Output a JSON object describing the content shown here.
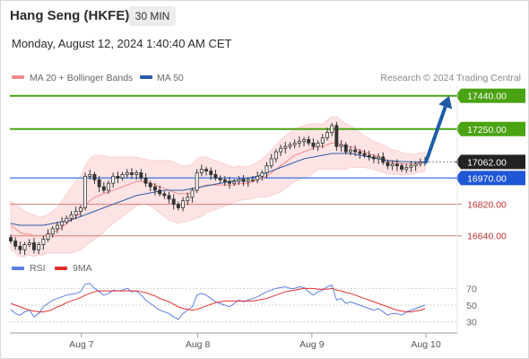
{
  "header": {
    "title": "Hang Seng (HKFE)",
    "timeframe": "30 MIN",
    "datetime": "Monday, August 12, 2024 1:40:40 AM CET"
  },
  "legend": {
    "items": [
      {
        "label": "MA 20 + Bollinger Bands",
        "color": "#f28b8b"
      },
      {
        "label": "MA 50",
        "color": "#2a5ca8"
      }
    ],
    "credit": "Research © 2024 Trading Central"
  },
  "colors": {
    "resistance": "#4aa312",
    "pivot": "#4e7fe8",
    "support": "#e07b7b",
    "last_price": "#222222",
    "arrow": "#1f5ca8",
    "band_fill": "#fde3e3",
    "up_candle": "#ffffff",
    "down_candle": "#333333",
    "rsi": "#5b7fe0",
    "rsi_ma": "#e53030"
  },
  "chart_data": [
    {
      "type": "candlestick",
      "y_range": [
        16500,
        17500
      ],
      "x_range": [
        0,
        100
      ],
      "x_tick_labels": [
        {
          "label": "Aug 7",
          "x": 16
        },
        {
          "label": "Aug 8",
          "x": 42
        },
        {
          "label": "Aug 9",
          "x": 67.5
        },
        {
          "label": "Aug 10",
          "x": 93
        }
      ],
      "level_lines": [
        {
          "label": "17440.00",
          "value": 17440,
          "kind": "resistance"
        },
        {
          "label": "17250.00",
          "value": 17250,
          "kind": "resistance"
        },
        {
          "label": "17062.00",
          "value": 17062,
          "kind": "last_price"
        },
        {
          "label": "16970.00",
          "value": 16970,
          "kind": "pivot"
        },
        {
          "label": "16820.00",
          "value": 16820,
          "kind": "support"
        },
        {
          "label": "16640.00",
          "value": 16640,
          "kind": "support"
        }
      ],
      "arrow": {
        "from": [
          93,
          17062
        ],
        "to": [
          98.2,
          17440
        ]
      },
      "close": [
        16610,
        16580,
        16560,
        16590,
        16600,
        16560,
        16590,
        16620,
        16650,
        16680,
        16700,
        16720,
        16740,
        16760,
        16780,
        16800,
        16980,
        16990,
        16960,
        16920,
        16900,
        16940,
        16980,
        16970,
        16990,
        17000,
        16990,
        17000,
        16970,
        16940,
        16920,
        16900,
        16880,
        16870,
        16850,
        16820,
        16800,
        16840,
        16860,
        16900,
        17000,
        17020,
        17010,
        16990,
        16970,
        16960,
        16950,
        16940,
        16950,
        16960,
        16950,
        16960,
        16960,
        16980,
        17000,
        17040,
        17080,
        17120,
        17140,
        17150,
        17160,
        17170,
        17180,
        17190,
        17170,
        17150,
        17170,
        17200,
        17230,
        17270,
        17150,
        17160,
        17120,
        17130,
        17120,
        17110,
        17100,
        17090,
        17080,
        17090,
        17060,
        17040,
        17050,
        17040,
        17020,
        17030,
        17040,
        17050,
        17060,
        17062
      ],
      "ma20": [
        16700,
        16680,
        16660,
        16650,
        16650,
        16640,
        16640,
        16640,
        16650,
        16660,
        16670,
        16690,
        16710,
        16730,
        16750,
        16770,
        16810,
        16840,
        16860,
        16870,
        16880,
        16890,
        16900,
        16910,
        16920,
        16930,
        16940,
        16950,
        16950,
        16950,
        16940,
        16930,
        16920,
        16910,
        16900,
        16890,
        16880,
        16880,
        16880,
        16890,
        16910,
        16920,
        16930,
        16930,
        16930,
        16930,
        16930,
        16930,
        16930,
        16940,
        16940,
        16940,
        16950,
        16960,
        16970,
        16980,
        17000,
        17020,
        17040,
        17060,
        17080,
        17100,
        17110,
        17120,
        17130,
        17140,
        17150,
        17150,
        17160,
        17170,
        17170,
        17160,
        17150,
        17150,
        17140,
        17130,
        17120,
        17110,
        17100,
        17090,
        17080,
        17070,
        17060,
        17060,
        17050,
        17050,
        17050,
        17050,
        17060,
        17062
      ],
      "ma50": [
        16710,
        16705,
        16700,
        16700,
        16700,
        16700,
        16700,
        16700,
        16705,
        16710,
        16715,
        16720,
        16725,
        16730,
        16740,
        16750,
        16760,
        16770,
        16780,
        16790,
        16800,
        16810,
        16820,
        16830,
        16840,
        16850,
        16860,
        16870,
        16875,
        16880,
        16885,
        16890,
        16895,
        16900,
        16900,
        16900,
        16900,
        16900,
        16905,
        16910,
        16915,
        16920,
        16925,
        16930,
        16935,
        16940,
        16945,
        16950,
        16955,
        16960,
        16965,
        16970,
        16975,
        16980,
        16990,
        17000,
        17010,
        17020,
        17030,
        17040,
        17050,
        17060,
        17070,
        17080,
        17085,
        17090,
        17095,
        17100,
        17105,
        17110,
        17110,
        17110,
        17110,
        17110,
        17105,
        17100,
        17095,
        17090,
        17085,
        17080,
        17075,
        17070,
        17068,
        17066,
        17064,
        17063,
        17062,
        17062,
        17062,
        17062
      ],
      "bb_width": [
        140,
        140,
        140,
        130,
        120,
        120,
        110,
        110,
        110,
        120,
        130,
        150,
        170,
        190,
        200,
        210,
        230,
        240,
        240,
        230,
        220,
        200,
        190,
        180,
        170,
        160,
        150,
        140,
        130,
        130,
        130,
        140,
        150,
        160,
        170,
        170,
        170,
        160,
        160,
        160,
        170,
        170,
        160,
        150,
        140,
        130,
        120,
        110,
        100,
        100,
        95,
        95,
        95,
        100,
        110,
        120,
        130,
        140,
        150,
        150,
        150,
        150,
        150,
        150,
        150,
        140,
        130,
        130,
        140,
        150,
        150,
        140,
        130,
        120,
        110,
        100,
        90,
        85,
        80,
        80,
        80,
        75,
        70,
        70,
        65,
        60,
        60,
        55,
        55,
        55
      ]
    },
    {
      "type": "line",
      "legend": [
        {
          "label": "RSI",
          "color": "#5b7fe0"
        },
        {
          "label": "9MA",
          "color": "#e53030"
        }
      ],
      "y_range": [
        20,
        80
      ],
      "y_ticks": [
        70,
        50,
        30
      ],
      "series": [
        {
          "name": "RSI",
          "values": [
            45,
            40,
            38,
            42,
            44,
            36,
            40,
            48,
            52,
            56,
            58,
            60,
            62,
            63,
            64,
            66,
            75,
            76,
            70,
            66,
            62,
            64,
            68,
            67,
            68,
            70,
            66,
            67,
            62,
            56,
            52,
            48,
            44,
            42,
            40,
            36,
            33,
            40,
            44,
            48,
            62,
            64,
            62,
            58,
            54,
            52,
            50,
            48,
            52,
            56,
            54,
            56,
            58,
            60,
            63,
            66,
            68,
            70,
            71,
            72,
            70,
            70,
            72,
            71,
            66,
            62,
            66,
            68,
            72,
            74,
            56,
            58,
            52,
            54,
            52,
            50,
            48,
            46,
            44,
            46,
            42,
            38,
            40,
            40,
            38,
            42,
            44,
            46,
            48,
            50
          ]
        },
        {
          "name": "9MA",
          "values": [
            52,
            50,
            48,
            46,
            44,
            43,
            42,
            42,
            43,
            45,
            48,
            50,
            53,
            55,
            57,
            59,
            62,
            64,
            66,
            67,
            67,
            67,
            67,
            67,
            67,
            67,
            67,
            67,
            66,
            65,
            63,
            61,
            58,
            56,
            54,
            51,
            48,
            46,
            45,
            44,
            45,
            47,
            49,
            51,
            53,
            54,
            55,
            55,
            55,
            55,
            55,
            55,
            55,
            56,
            57,
            58,
            60,
            62,
            64,
            66,
            67,
            68,
            69,
            70,
            70,
            70,
            69,
            69,
            69,
            70,
            68,
            67,
            65,
            64,
            62,
            60,
            58,
            56,
            54,
            52,
            50,
            48,
            46,
            44,
            43,
            42,
            42,
            43,
            44,
            46
          ]
        }
      ]
    }
  ]
}
